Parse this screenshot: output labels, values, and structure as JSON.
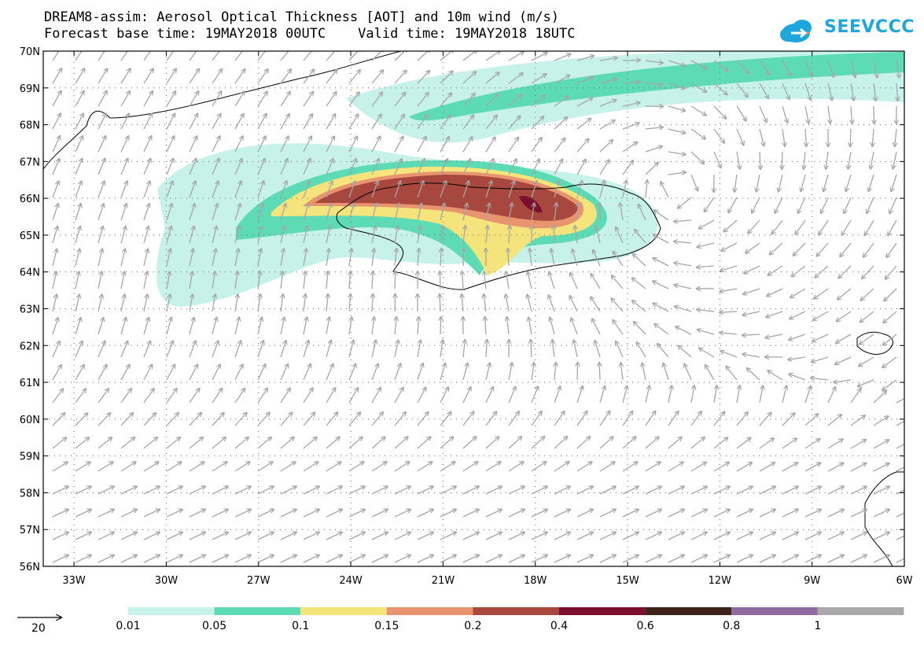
{
  "header": {
    "line1": "DREAM8-assim: Aerosol Optical Thickness [AOT] and 10m wind (m/s)",
    "line2": "Forecast base time: 19MAY2018 00UTC    Valid time: 19MAY2018 18UTC"
  },
  "logo": {
    "text": "SEEVCCC",
    "color": "#1ea6dd"
  },
  "map": {
    "lat_range": [
      56,
      70
    ],
    "lon_range": [
      -34,
      -6
    ],
    "lat_labels": [
      "70N",
      "69N",
      "68N",
      "67N",
      "66N",
      "65N",
      "64N",
      "63N",
      "62N",
      "61N",
      "60N",
      "59N",
      "58N",
      "57N",
      "56N"
    ],
    "lon_labels": [
      "33W",
      "30W",
      "27W",
      "24W",
      "21W",
      "18W",
      "15W",
      "12W",
      "9W",
      "6W"
    ],
    "wind_color": "#a6a6a6",
    "coast_color": "#000000"
  },
  "legend": {
    "wind_ref_label": "20",
    "levels": [
      "0.01",
      "0.05",
      "0.1",
      "0.15",
      "0.2",
      "0.4",
      "0.6",
      "0.8",
      "1"
    ],
    "colors": [
      "#c6f2ea",
      "#5ddbb4",
      "#f5e37c",
      "#e8946e",
      "#a8473e",
      "#7c0f2e",
      "#3d2317",
      "#8e6aa0",
      "#a8a8a8"
    ]
  }
}
